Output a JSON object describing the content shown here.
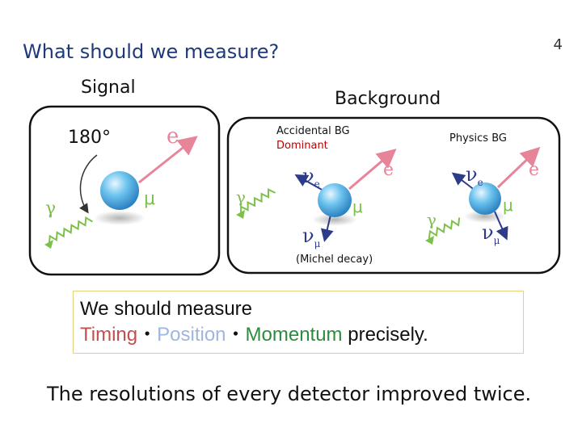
{
  "slide": {
    "title": "What should we measure?",
    "page_number": "4"
  },
  "signal": {
    "heading": "Signal",
    "angle_label": "180°",
    "electron_label": "e",
    "muon_label": "μ",
    "gamma_label": "γ"
  },
  "background": {
    "heading": "Background",
    "accidental": {
      "title": "Accidental BG",
      "subtitle": "Dominant",
      "neutrino_e_label": "ν",
      "neutrino_e_sub": "e",
      "electron_label": "e",
      "muon_label": "μ",
      "neutrino_mu_label": "ν",
      "neutrino_mu_sub": "μ",
      "gamma_label": "γ",
      "note": "(Michel decay)"
    },
    "physics": {
      "title": "Physics BG",
      "neutrino_e_label": "ν",
      "neutrino_e_sub": "e",
      "electron_label": "e",
      "muon_label": "μ",
      "neutrino_mu_label": "ν",
      "neutrino_mu_sub": "μ",
      "gamma_label": "γ"
    }
  },
  "measure_box": {
    "line1": "We should measure",
    "timing": "Timing",
    "sep1": "・",
    "position": "Position",
    "sep2": "・",
    "momentum": "Momentum",
    "rest": " precisely."
  },
  "conclusion": "The resolutions of every detector improved twice.",
  "colors": {
    "title": "#1f3a7a",
    "electron_arrow": "#e8849a",
    "gamma_wave": "#7cc04a",
    "neutrino_arrow": "#2e3a8a",
    "muon_ball": "#5fb8e8",
    "timing": "#c0504d",
    "position": "#9fb6e0",
    "momentum": "#2e8b3d"
  }
}
